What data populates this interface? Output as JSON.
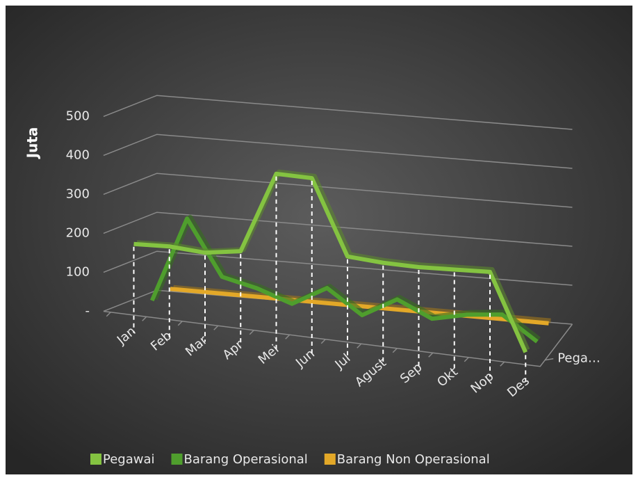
{
  "chart_data": {
    "type": "line3d",
    "y_axis_title": "Juta",
    "categories": [
      "Jan",
      "Feb",
      "Mar",
      "Apr",
      "Mei",
      "Jun",
      "Jul",
      "Agust",
      "Sep",
      "Okt",
      "Nop",
      "Des"
    ],
    "depth_labels": [
      "Pega…"
    ],
    "series": [
      {
        "name": "Pegawai",
        "color": "#84c341",
        "values": [
          175,
          180,
          175,
          190,
          400,
          400,
          210,
          205,
          205,
          210,
          215,
          20
        ]
      },
      {
        "name": "Barang Operasional",
        "color": "#4f9e2d",
        "values": [
          10,
          230,
          90,
          70,
          40,
          90,
          30,
          80,
          40,
          60,
          70,
          10
        ]
      },
      {
        "name": "Barang Non Operasional",
        "color": "#e3a828",
        "values": [
          20,
          20,
          20,
          20,
          20,
          20,
          20,
          20,
          20,
          20,
          20,
          20
        ]
      }
    ],
    "ylim": [
      0,
      500
    ],
    "yticks": [
      {
        "value": 0,
        "label": "-"
      },
      100,
      200,
      300,
      400,
      500
    ],
    "grid": true,
    "drop_lines": true,
    "legend": "bottom"
  }
}
